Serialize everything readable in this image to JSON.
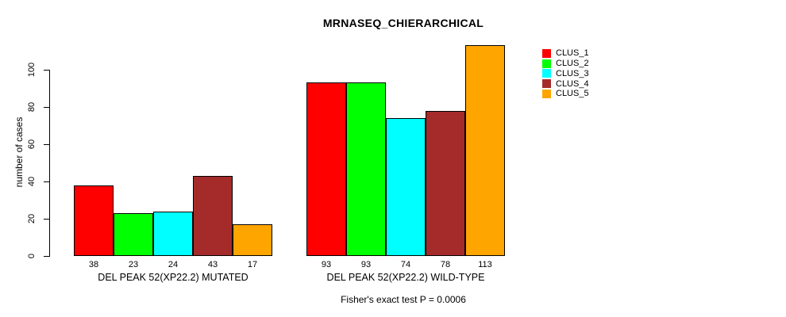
{
  "title": "MRNASEQ_CHIERARCHICAL",
  "ylabel": "number of cases",
  "caption": "Fisher's exact test P = 0.0006",
  "chart_data": {
    "type": "bar",
    "title": "MRNASEQ_CHIERARCHICAL",
    "xlabel": "",
    "ylabel": "number of cases",
    "groups": [
      {
        "label": "DEL PEAK 52(XP22.2) MUTATED",
        "values": [
          38,
          23,
          24,
          43,
          17
        ]
      },
      {
        "label": "DEL PEAK 52(XP22.2) WILD-TYPE",
        "values": [
          93,
          93,
          74,
          78,
          113
        ]
      }
    ],
    "series": [
      {
        "name": "CLUS_1",
        "color": "#FF0000"
      },
      {
        "name": "CLUS_2",
        "color": "#00FF00"
      },
      {
        "name": "CLUS_3",
        "color": "#00FFFF"
      },
      {
        "name": "CLUS_4",
        "color": "#A52A2A"
      },
      {
        "name": "CLUS_5",
        "color": "#FFA500"
      }
    ],
    "bar_border_color": "#000000",
    "yticks": [
      0,
      20,
      40,
      60,
      80,
      100
    ],
    "ylim": [
      0,
      117
    ],
    "grid": false,
    "legend_position": "right",
    "annotation": "Fisher's exact test P = 0.0006"
  }
}
